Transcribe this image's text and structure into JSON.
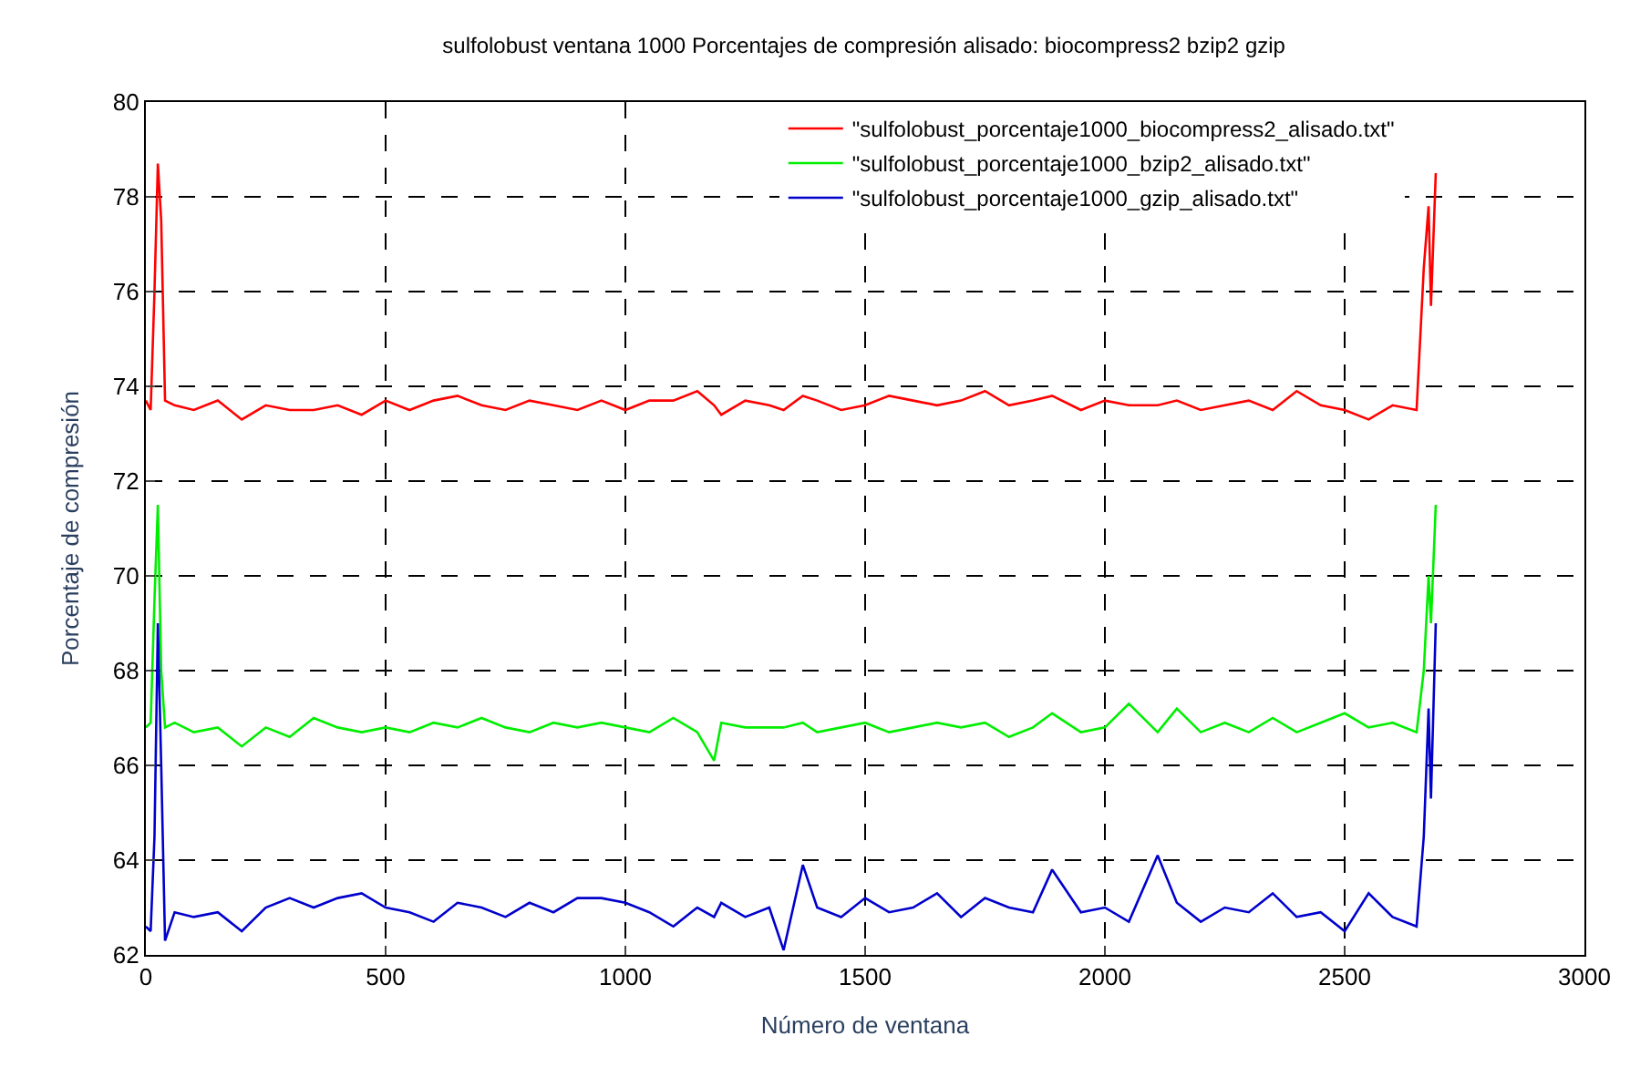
{
  "chart_data": {
    "type": "line",
    "title": "sulfolobust ventana 1000 Porcentajes de compresión alisado: biocompress2 bzip2 gzip",
    "xlabel": "Número de ventana",
    "ylabel": "Porcentaje de compresión",
    "x": [
      0,
      10,
      18,
      25,
      32,
      40,
      60,
      100,
      150,
      200,
      250,
      300,
      350,
      400,
      450,
      500,
      550,
      600,
      650,
      700,
      750,
      800,
      850,
      900,
      950,
      1000,
      1050,
      1100,
      1150,
      1185,
      1200,
      1250,
      1300,
      1330,
      1370,
      1400,
      1450,
      1500,
      1550,
      1600,
      1650,
      1700,
      1750,
      1800,
      1850,
      1890,
      1950,
      2000,
      2050,
      2110,
      2150,
      2200,
      2250,
      2300,
      2350,
      2400,
      2450,
      2500,
      2550,
      2600,
      2650,
      2665,
      2675,
      2680,
      2690
    ],
    "series": [
      {
        "name": "\"sulfolobust_porcentaje1000_biocompress2_alisado.txt\"",
        "color": "#ff0000",
        "values": [
          73.7,
          73.5,
          76.0,
          78.7,
          77.5,
          73.7,
          73.6,
          73.5,
          73.7,
          73.3,
          73.6,
          73.5,
          73.5,
          73.6,
          73.4,
          73.7,
          73.5,
          73.7,
          73.8,
          73.6,
          73.5,
          73.7,
          73.6,
          73.5,
          73.7,
          73.5,
          73.7,
          73.7,
          73.9,
          73.6,
          73.4,
          73.7,
          73.6,
          73.5,
          73.8,
          73.7,
          73.5,
          73.6,
          73.8,
          73.7,
          73.6,
          73.7,
          73.9,
          73.6,
          73.7,
          73.8,
          73.5,
          73.7,
          73.6,
          73.6,
          73.7,
          73.5,
          73.6,
          73.7,
          73.5,
          73.9,
          73.6,
          73.5,
          73.3,
          73.6,
          73.5,
          76.5,
          77.8,
          75.7,
          78.5
        ]
      },
      {
        "name": "\"sulfolobust_porcentaje1000_bzip2_alisado.txt\"",
        "color": "#00ee00",
        "values": [
          66.8,
          66.9,
          69.5,
          71.5,
          68.0,
          66.8,
          66.9,
          66.7,
          66.8,
          66.4,
          66.8,
          66.6,
          67.0,
          66.8,
          66.7,
          66.8,
          66.7,
          66.9,
          66.8,
          67.0,
          66.8,
          66.7,
          66.9,
          66.8,
          66.9,
          66.8,
          66.7,
          67.0,
          66.7,
          66.1,
          66.9,
          66.8,
          66.8,
          66.8,
          66.9,
          66.7,
          66.8,
          66.9,
          66.7,
          66.8,
          66.9,
          66.8,
          66.9,
          66.6,
          66.8,
          67.1,
          66.7,
          66.8,
          67.3,
          66.7,
          67.2,
          66.7,
          66.9,
          66.7,
          67.0,
          66.7,
          66.9,
          67.1,
          66.8,
          66.9,
          66.7,
          68.0,
          70.0,
          69.0,
          71.5
        ]
      },
      {
        "name": "\"sulfolobust_porcentaje1000_gzip_alisado.txt\"",
        "color": "#0000cc",
        "values": [
          62.6,
          62.5,
          64.5,
          69.0,
          66.0,
          62.3,
          62.9,
          62.8,
          62.9,
          62.5,
          63.0,
          63.2,
          63.0,
          63.2,
          63.3,
          63.0,
          62.9,
          62.7,
          63.1,
          63.0,
          62.8,
          63.1,
          62.9,
          63.2,
          63.2,
          63.1,
          62.9,
          62.6,
          63.0,
          62.8,
          63.1,
          62.8,
          63.0,
          62.1,
          63.9,
          63.0,
          62.8,
          63.2,
          62.9,
          63.0,
          63.3,
          62.8,
          63.2,
          63.0,
          62.9,
          63.8,
          62.9,
          63.0,
          62.7,
          64.1,
          63.1,
          62.7,
          63.0,
          62.9,
          63.3,
          62.8,
          62.9,
          62.5,
          63.3,
          62.8,
          62.6,
          64.5,
          67.2,
          65.3,
          69.0
        ]
      }
    ],
    "xlim": [
      0,
      3000
    ],
    "xticks": [
      0,
      500,
      1000,
      1500,
      2000,
      2500,
      3000
    ],
    "ylim": [
      62,
      80
    ],
    "yticks": [
      62,
      64,
      66,
      68,
      70,
      72,
      74,
      76,
      78,
      80
    ],
    "grid": true,
    "legend": "top right",
    "line_style": "solid",
    "marker": "none"
  }
}
